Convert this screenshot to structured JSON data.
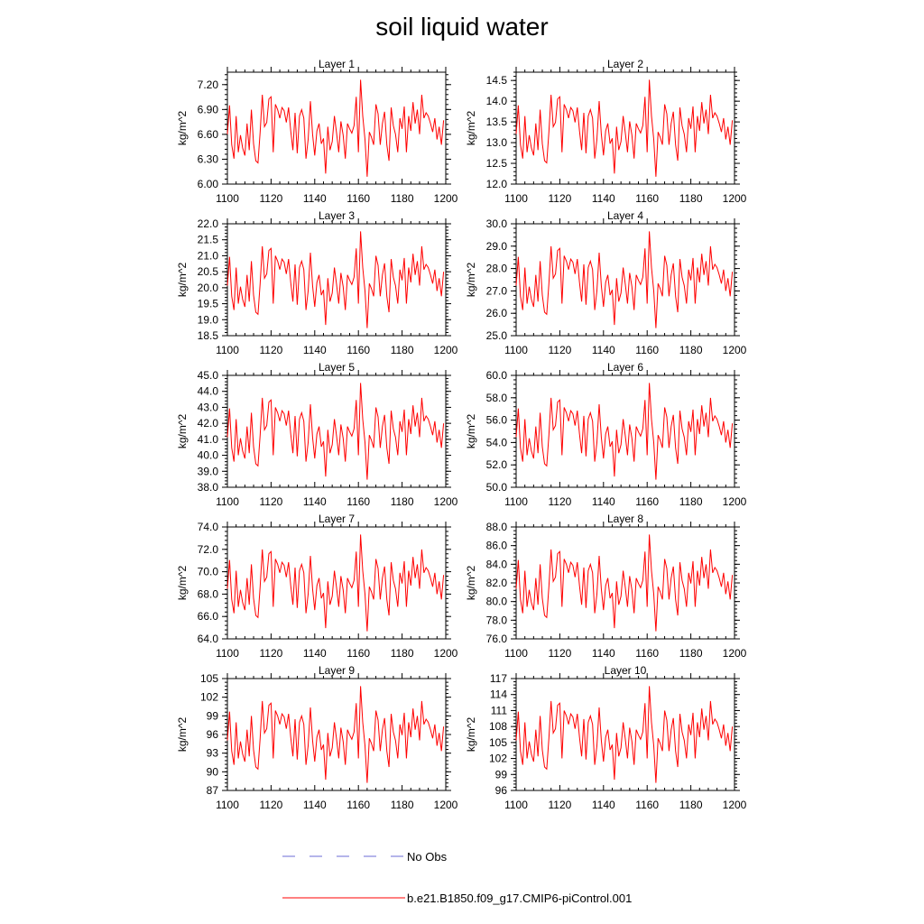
{
  "title": "soil liquid water",
  "legend": {
    "items": [
      {
        "label": "No Obs",
        "color": "#6b6bd6",
        "dash": "long-dash"
      },
      {
        "label": "b.e21.B1850.f09_g17.CMIP6-piControl.001",
        "color": "#ff0000",
        "dash": "solid"
      }
    ]
  },
  "chart_data": [
    {
      "type": "line",
      "title": "Layer 1",
      "ylabel": "kg/m^2",
      "xlim": [
        1100,
        1200
      ],
      "ylim": [
        6.0,
        7.35
      ],
      "xticks": [
        1100,
        1120,
        1140,
        1160,
        1180,
        1200
      ],
      "yticks": [
        6.0,
        6.3,
        6.6,
        6.9,
        7.2
      ],
      "ytick_labels": [
        "6.00",
        "6.30",
        "6.60",
        "6.90",
        "7.20"
      ],
      "series": [
        {
          "color": "#ff0000"
        }
      ]
    },
    {
      "type": "line",
      "title": "Layer 2",
      "ylabel": "kg/m^2",
      "xlim": [
        1100,
        1200
      ],
      "ylim": [
        12.0,
        14.7
      ],
      "xticks": [
        1100,
        1120,
        1140,
        1160,
        1180,
        1200
      ],
      "yticks": [
        12.0,
        12.5,
        13.0,
        13.5,
        14.0,
        14.5
      ],
      "ytick_labels": [
        "12.0",
        "12.5",
        "13.0",
        "13.5",
        "14.0",
        "14.5"
      ],
      "series": [
        {
          "color": "#ff0000"
        }
      ]
    },
    {
      "type": "line",
      "title": "Layer 3",
      "ylabel": "kg/m^2",
      "xlim": [
        1100,
        1200
      ],
      "ylim": [
        18.5,
        22.0
      ],
      "xticks": [
        1100,
        1120,
        1140,
        1160,
        1180,
        1200
      ],
      "yticks": [
        18.5,
        19.0,
        19.5,
        20.0,
        20.5,
        21.0,
        21.5,
        22.0
      ],
      "ytick_labels": [
        "18.5",
        "19.0",
        "19.5",
        "20.0",
        "20.5",
        "21.0",
        "21.5",
        "22.0"
      ],
      "series": [
        {
          "color": "#ff0000"
        }
      ]
    },
    {
      "type": "line",
      "title": "Layer 4",
      "ylabel": "kg/m^2",
      "xlim": [
        1100,
        1200
      ],
      "ylim": [
        25.0,
        30.0
      ],
      "xticks": [
        1100,
        1120,
        1140,
        1160,
        1180,
        1200
      ],
      "yticks": [
        25.0,
        26.0,
        27.0,
        28.0,
        29.0,
        30.0
      ],
      "ytick_labels": [
        "25.0",
        "26.0",
        "27.0",
        "28.0",
        "29.0",
        "30.0"
      ],
      "series": [
        {
          "color": "#ff0000"
        }
      ]
    },
    {
      "type": "line",
      "title": "Layer 5",
      "ylabel": "kg/m^2",
      "xlim": [
        1100,
        1200
      ],
      "ylim": [
        38.0,
        45.0
      ],
      "xticks": [
        1100,
        1120,
        1140,
        1160,
        1180,
        1200
      ],
      "yticks": [
        38,
        39,
        40,
        41,
        42,
        43,
        44,
        45
      ],
      "ytick_labels": [
        "38.0",
        "39.0",
        "40.0",
        "41.0",
        "42.0",
        "43.0",
        "44.0",
        "45.0"
      ],
      "series": [
        {
          "color": "#ff0000"
        }
      ]
    },
    {
      "type": "line",
      "title": "Layer 6",
      "ylabel": "kg/m^2",
      "xlim": [
        1100,
        1200
      ],
      "ylim": [
        50.0,
        60.0
      ],
      "xticks": [
        1100,
        1120,
        1140,
        1160,
        1180,
        1200
      ],
      "yticks": [
        50,
        52,
        54,
        56,
        58,
        60
      ],
      "ytick_labels": [
        "50.0",
        "52.0",
        "54.0",
        "56.0",
        "58.0",
        "60.0"
      ],
      "series": [
        {
          "color": "#ff0000"
        }
      ]
    },
    {
      "type": "line",
      "title": "Layer 7",
      "ylabel": "kg/m^2",
      "xlim": [
        1100,
        1200
      ],
      "ylim": [
        64.0,
        74.0
      ],
      "xticks": [
        1100,
        1120,
        1140,
        1160,
        1180,
        1200
      ],
      "yticks": [
        64,
        66,
        68,
        70,
        72,
        74
      ],
      "ytick_labels": [
        "64.0",
        "66.0",
        "68.0",
        "70.0",
        "72.0",
        "74.0"
      ],
      "series": [
        {
          "color": "#ff0000"
        }
      ]
    },
    {
      "type": "line",
      "title": "Layer 8",
      "ylabel": "kg/m^2",
      "xlim": [
        1100,
        1200
      ],
      "ylim": [
        76.0,
        88.0
      ],
      "xticks": [
        1100,
        1120,
        1140,
        1160,
        1180,
        1200
      ],
      "yticks": [
        76,
        78,
        80,
        82,
        84,
        86,
        88
      ],
      "ytick_labels": [
        "76.0",
        "78.0",
        "80.0",
        "82.0",
        "84.0",
        "86.0",
        "88.0"
      ],
      "series": [
        {
          "color": "#ff0000"
        }
      ]
    },
    {
      "type": "line",
      "title": "Layer 9",
      "ylabel": "kg/m^2",
      "xlim": [
        1100,
        1200
      ],
      "ylim": [
        87,
        105
      ],
      "xticks": [
        1100,
        1120,
        1140,
        1160,
        1180,
        1200
      ],
      "yticks": [
        87,
        90,
        93,
        96,
        99,
        102,
        105
      ],
      "ytick_labels": [
        "87",
        "90",
        "93",
        "96",
        "99",
        "102",
        "105"
      ],
      "series": [
        {
          "color": "#ff0000"
        }
      ]
    },
    {
      "type": "line",
      "title": "Layer 10",
      "ylabel": "kg/m^2",
      "xlim": [
        1100,
        1200
      ],
      "ylim": [
        96,
        117
      ],
      "xticks": [
        1100,
        1120,
        1140,
        1160,
        1180,
        1200
      ],
      "yticks": [
        96,
        99,
        102,
        105,
        108,
        111,
        114,
        117
      ],
      "ytick_labels": [
        "96",
        "99",
        "102",
        "105",
        "108",
        "111",
        "114",
        "117"
      ],
      "series": [
        {
          "color": "#ff0000"
        }
      ]
    }
  ],
  "base_series": {
    "x_start": 1100,
    "x_step": 1,
    "normalized_values": [
      0.45,
      0.72,
      0.35,
      0.22,
      0.62,
      0.28,
      0.44,
      0.32,
      0.25,
      0.55,
      0.3,
      0.68,
      0.36,
      0.2,
      0.18,
      0.47,
      0.82,
      0.52,
      0.56,
      0.78,
      0.8,
      0.28,
      0.73,
      0.68,
      0.6,
      0.7,
      0.67,
      0.56,
      0.7,
      0.48,
      0.3,
      0.65,
      0.27,
      0.62,
      0.68,
      0.6,
      0.22,
      0.4,
      0.76,
      0.45,
      0.25,
      0.48,
      0.55,
      0.36,
      0.41,
      0.08,
      0.52,
      0.3,
      0.38,
      0.62,
      0.46,
      0.28,
      0.57,
      0.44,
      0.22,
      0.55,
      0.5,
      0.46,
      0.53,
      0.8,
      0.28,
      0.96,
      0.62,
      0.4,
      0.05,
      0.47,
      0.42,
      0.35,
      0.73,
      0.64,
      0.35,
      0.55,
      0.66,
      0.35,
      0.2,
      0.7,
      0.53,
      0.45,
      0.28,
      0.6,
      0.5,
      0.71,
      0.28,
      0.62,
      0.48,
      0.75,
      0.55,
      0.68,
      0.45,
      0.82,
      0.6,
      0.65,
      0.62,
      0.55,
      0.47,
      0.6,
      0.4,
      0.52,
      0.35,
      0.58
    ]
  }
}
